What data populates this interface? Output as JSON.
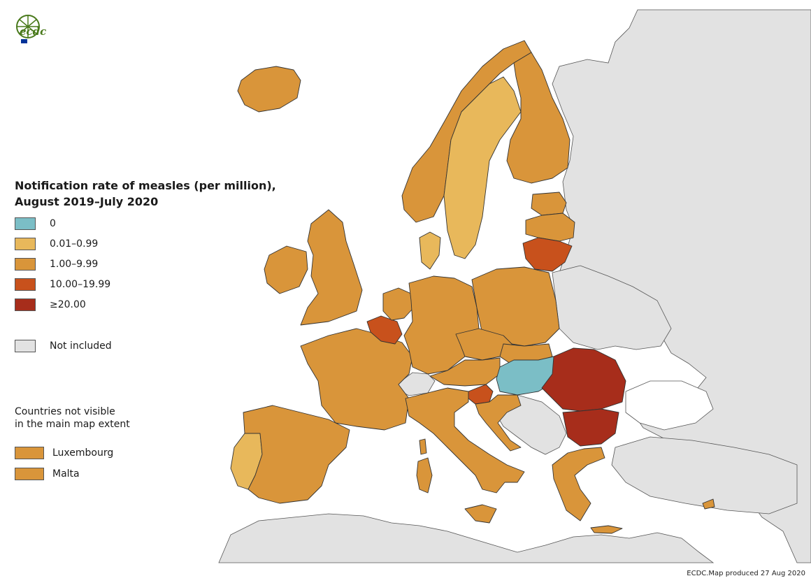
{
  "logo": {
    "text": "ecdc",
    "icon": "ecdc-globe-logo"
  },
  "legend": {
    "title_line1": "Notification rate of measles (per million),",
    "title_line2": "August 2019–July 2020",
    "items": [
      {
        "label": "0",
        "color": "#7bbec6"
      },
      {
        "label": "0.01–0.99",
        "color": "#e8b85b"
      },
      {
        "label": "1.00–9.99",
        "color": "#d9953a"
      },
      {
        "label": "10.00–19.99",
        "color": "#c8511c"
      },
      {
        "label": "≥20.00",
        "color": "#a72d1b"
      }
    ],
    "not_included": {
      "label": "Not included",
      "color": "#e2e2e2"
    }
  },
  "small_countries": {
    "heading_line1": "Countries not visible",
    "heading_line2": "in the main map extent",
    "items": [
      {
        "label": "Luxembourg",
        "color": "#d9953a"
      },
      {
        "label": "Malta",
        "color": "#d9953a"
      }
    ]
  },
  "footer": "ECDC.Map produced 27 Aug 2020",
  "colors": {
    "sea": "#ffffff",
    "border": "#333333",
    "not_included": "#e2e2e2"
  }
}
